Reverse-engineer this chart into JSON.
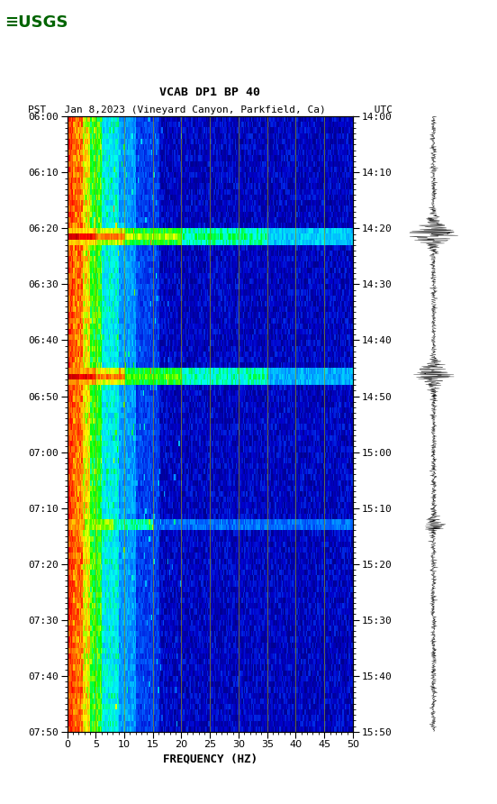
{
  "title_line1": "VCAB DP1 BP 40",
  "title_line2": "PST   Jan 8,2023 (Vineyard Canyon, Parkfield, Ca)        UTC",
  "xlabel": "FREQUENCY (HZ)",
  "freq_min": 0,
  "freq_max": 50,
  "yticks_pst": [
    "06:00",
    "06:10",
    "06:20",
    "06:30",
    "06:40",
    "06:50",
    "07:00",
    "07:10",
    "07:20",
    "07:30",
    "07:40",
    "07:50"
  ],
  "yticks_utc": [
    "14:00",
    "14:10",
    "14:20",
    "14:30",
    "14:40",
    "14:50",
    "15:00",
    "15:10",
    "15:20",
    "15:30",
    "15:40",
    "15:50"
  ],
  "xticks": [
    0,
    5,
    10,
    15,
    20,
    25,
    30,
    35,
    40,
    45,
    50
  ],
  "vertical_lines_freq": [
    5,
    10,
    15,
    20,
    25,
    30,
    35,
    40,
    45
  ],
  "vertical_line_color": "#9B9B00",
  "fig_width": 5.52,
  "fig_height": 8.92,
  "dpi": 100,
  "seed": 42,
  "eq1_row": 21,
  "eq2_row": 46,
  "eq3_row": 73
}
